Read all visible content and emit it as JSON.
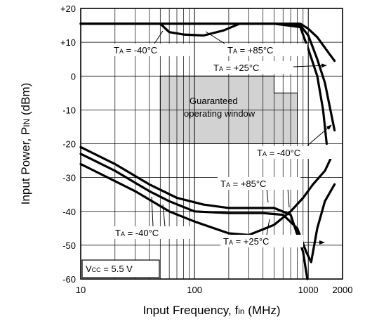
{
  "chart_data": {
    "type": "line",
    "xlabel_main": "Input Frequency, f",
    "xlabel_sub": "in",
    "xlabel_unit": " (MHz)",
    "ylabel_main": "Input Power, P",
    "ylabel_sub": "IN",
    "ylabel_unit": " (dBm)",
    "x_scale": "log",
    "xlim": [
      10,
      2000
    ],
    "ylim": [
      -60,
      20
    ],
    "x_ticks": [
      {
        "value": 10,
        "label": "10"
      },
      {
        "value": 100,
        "label": "100"
      },
      {
        "value": 1000,
        "label": "1000"
      },
      {
        "value": 2000,
        "label": "2000"
      }
    ],
    "y_ticks": [
      {
        "value": 20,
        "label": "+20"
      },
      {
        "value": 10,
        "label": "+10"
      },
      {
        "value": 0,
        "label": "0"
      },
      {
        "value": -10,
        "label": "-10"
      },
      {
        "value": -20,
        "label": "-20"
      },
      {
        "value": -30,
        "label": "-30"
      },
      {
        "value": -40,
        "label": "-40"
      },
      {
        "value": -50,
        "label": "-50"
      },
      {
        "value": -60,
        "label": "-60"
      }
    ],
    "grid": true,
    "window": {
      "label_line1": "Guaranteed",
      "label_line2": "operating window",
      "polygon": [
        [
          50,
          -20
        ],
        [
          800,
          -20
        ],
        [
          800,
          -5
        ],
        [
          500,
          -5
        ],
        [
          500,
          0
        ],
        [
          50,
          0
        ]
      ]
    },
    "condition": {
      "main": "V",
      "sub": "CC",
      "rest": " = 5.5 V"
    },
    "series": [
      {
        "name": "upper TA=-40°C",
        "points": [
          [
            10,
            15.5
          ],
          [
            500,
            15.5
          ],
          [
            850,
            15
          ],
          [
            1000,
            12
          ],
          [
            1200,
            5
          ],
          [
            1400,
            -2
          ],
          [
            1700,
            -16
          ]
        ]
      },
      {
        "name": "upper TA=+25°C",
        "points": [
          [
            10,
            15.5
          ],
          [
            500,
            15.5
          ],
          [
            850,
            14.5
          ],
          [
            1000,
            8
          ],
          [
            1200,
            0
          ],
          [
            1350,
            -10
          ],
          [
            1450,
            -20
          ]
        ]
      },
      {
        "name": "upper TA=+85°C",
        "points": [
          [
            10,
            15.5
          ],
          [
            50,
            15.5
          ],
          [
            60,
            13
          ],
          [
            80,
            12.3
          ],
          [
            120,
            12
          ],
          [
            180,
            13.5
          ],
          [
            250,
            15.5
          ],
          [
            500,
            15.5
          ],
          [
            850,
            15.5
          ],
          [
            1000,
            14
          ],
          [
            1200,
            11.5
          ],
          [
            1500,
            7
          ],
          [
            1700,
            4.5
          ]
        ]
      },
      {
        "name": "lower TA=-40°C",
        "points": [
          [
            10,
            -21
          ],
          [
            20,
            -26
          ],
          [
            40,
            -32
          ],
          [
            70,
            -36
          ],
          [
            120,
            -38
          ],
          [
            200,
            -39
          ],
          [
            500,
            -39
          ],
          [
            700,
            -41
          ],
          [
            900,
            -52
          ],
          [
            980,
            -60
          ]
        ]
      },
      {
        "name": "lower TA=+25°C",
        "points": [
          [
            10,
            -23
          ],
          [
            20,
            -28
          ],
          [
            40,
            -34
          ],
          [
            60,
            -37
          ],
          [
            100,
            -40
          ],
          [
            200,
            -40.5
          ],
          [
            400,
            -40.5
          ],
          [
            600,
            -41
          ],
          [
            800,
            -45
          ],
          [
            960,
            -52
          ],
          [
            1060,
            -55
          ],
          [
            1200,
            -45
          ],
          [
            1400,
            -37
          ],
          [
            1700,
            -32
          ]
        ]
      },
      {
        "name": "lower TA=+85°C",
        "points": [
          [
            10,
            -26
          ],
          [
            30,
            -34
          ],
          [
            60,
            -40
          ],
          [
            100,
            -43
          ],
          [
            200,
            -46.5
          ],
          [
            300,
            -47
          ],
          [
            500,
            -44
          ],
          [
            700,
            -40
          ],
          [
            900,
            -36
          ],
          [
            1100,
            -32
          ],
          [
            1400,
            -28
          ],
          [
            1700,
            -22
          ]
        ]
      }
    ],
    "annotations": [
      {
        "id": "upper-m40",
        "ta": "T",
        "sub": "A",
        "text": " = -40°C"
      },
      {
        "id": "upper-p85",
        "ta": "T",
        "sub": "A",
        "text": " = +85°C"
      },
      {
        "id": "upper-p25",
        "ta": "T",
        "sub": "A",
        "text": " = +25°C"
      },
      {
        "id": "mid-m40",
        "ta": "T",
        "sub": "A",
        "text": " = -40°C"
      },
      {
        "id": "lower-p85",
        "ta": "T",
        "sub": "A",
        "text": " = +85°C"
      },
      {
        "id": "lower-m40",
        "ta": "T",
        "sub": "A",
        "text": " = -40°C"
      },
      {
        "id": "lower-p25",
        "ta": "T",
        "sub": "A",
        "text": " = +25°C"
      }
    ]
  }
}
